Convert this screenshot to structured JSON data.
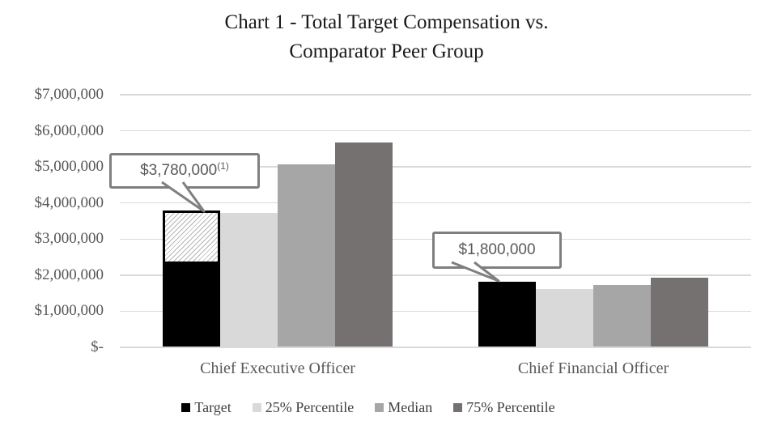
{
  "title": {
    "line1": "Chart 1 - Total Target Compensation vs.",
    "line2": "Comparator Peer Group"
  },
  "chart_data": {
    "type": "bar",
    "title": "Chart 1 - Total Target Compensation vs. Comparator Peer Group",
    "categories": [
      "Chief Executive Officer",
      "Chief Financial Officer"
    ],
    "series": [
      {
        "name": "Target",
        "color": "#000000",
        "values": [
          3780000,
          1800000
        ],
        "solid_values": [
          2280000,
          1800000
        ],
        "note": "CEO Target bar portion above the solid black (~$2,280,000 to $3,780,000) is drawn with white diagonal hatching and a black outline"
      },
      {
        "name": "25% Percentile",
        "color": "#d9d9d9",
        "values": [
          3700000,
          1600000
        ]
      },
      {
        "name": "Median",
        "color": "#a6a6a6",
        "values": [
          5050000,
          1700000
        ]
      },
      {
        "name": "75% Percentile",
        "color": "#757171",
        "values": [
          5650000,
          1900000
        ]
      }
    ],
    "y_axis": {
      "min": 0,
      "max": 7000000,
      "tick_interval": 1000000,
      "grid": true,
      "tick_labels": [
        "$7,000,000",
        "$6,000,000",
        "$5,000,000",
        "$4,000,000",
        "$3,000,000",
        "$2,000,000",
        "$1,000,000",
        "$-"
      ]
    },
    "legend_position": "bottom",
    "annotations": [
      {
        "label": "$3,780,000",
        "superscript": "(1)",
        "points_to": "Chief Executive Officer Target bar"
      },
      {
        "label": "$1,800,000",
        "superscript": "",
        "points_to": "Chief Financial Officer Target bar"
      }
    ]
  },
  "colors": {
    "gridline": "#d9d9d9",
    "axis_text": "#595959",
    "legend_text": "#404040",
    "title_text": "#1a1a1a",
    "callout_border": "#7f7f7f",
    "callout_text": "#595959",
    "hatch_line": "#b4b4b4"
  }
}
